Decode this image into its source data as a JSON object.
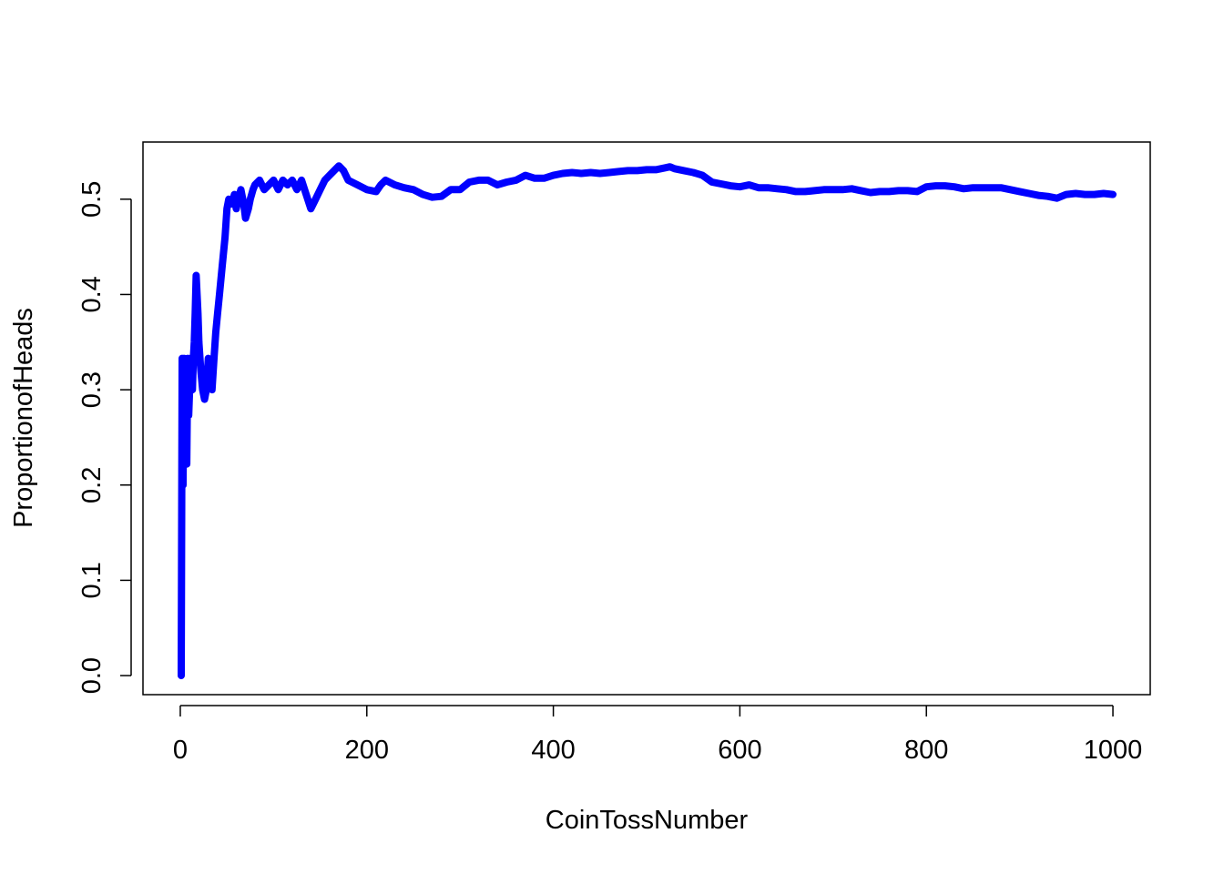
{
  "chart_data": {
    "type": "line",
    "title": "",
    "xlabel": "CoinTossNumber",
    "ylabel": "ProportionofHeads",
    "xlim": [
      -40,
      1040
    ],
    "ylim": [
      -0.02,
      0.56
    ],
    "xticks": [
      0,
      200,
      400,
      600,
      800,
      1000
    ],
    "yticks": [
      0.0,
      0.1,
      0.2,
      0.3,
      0.4,
      0.5
    ],
    "xtick_labels": [
      "0",
      "200",
      "400",
      "600",
      "800",
      "1000"
    ],
    "ytick_labels": [
      "0.0",
      "0.1",
      "0.2",
      "0.3",
      "0.4",
      "0.5"
    ],
    "grid": false,
    "line_color": "#0000ff",
    "series": [
      {
        "x": [
          1,
          2,
          3,
          4,
          5,
          6,
          7,
          8,
          9,
          10,
          11,
          12,
          13,
          14,
          15,
          16,
          17,
          18,
          19,
          20,
          22,
          24,
          26,
          28,
          30,
          32,
          34,
          36,
          38,
          40,
          42,
          45,
          48,
          50,
          52,
          55,
          58,
          60,
          62,
          65,
          68,
          70,
          73,
          75,
          78,
          80,
          85,
          90,
          95,
          100,
          105,
          110,
          115,
          120,
          125,
          130,
          135,
          140,
          145,
          150,
          155,
          160,
          165,
          170,
          175,
          180,
          190,
          200,
          210,
          215,
          220,
          230,
          240,
          250,
          260,
          270,
          280,
          290,
          300,
          310,
          320,
          330,
          340,
          350,
          360,
          370,
          380,
          390,
          400,
          410,
          420,
          430,
          440,
          450,
          460,
          470,
          480,
          490,
          500,
          510,
          520,
          525,
          530,
          540,
          550,
          560,
          570,
          580,
          590,
          600,
          610,
          620,
          630,
          640,
          650,
          660,
          670,
          680,
          690,
          700,
          710,
          720,
          730,
          740,
          750,
          760,
          770,
          780,
          790,
          800,
          810,
          820,
          830,
          840,
          850,
          860,
          870,
          880,
          890,
          900,
          910,
          920,
          930,
          940,
          950,
          960,
          970,
          980,
          990,
          1000
        ],
        "y": [
          0.0,
          0.333,
          0.2,
          0.333,
          0.25,
          0.3,
          0.222,
          0.333,
          0.273,
          0.3,
          0.333,
          0.308,
          0.3,
          0.333,
          0.35,
          0.38,
          0.42,
          0.4,
          0.38,
          0.35,
          0.32,
          0.3,
          0.29,
          0.3,
          0.333,
          0.31,
          0.3,
          0.33,
          0.36,
          0.38,
          0.4,
          0.43,
          0.46,
          0.49,
          0.5,
          0.495,
          0.505,
          0.49,
          0.5,
          0.51,
          0.495,
          0.48,
          0.49,
          0.5,
          0.51,
          0.515,
          0.52,
          0.51,
          0.515,
          0.52,
          0.51,
          0.52,
          0.515,
          0.52,
          0.51,
          0.52,
          0.505,
          0.49,
          0.5,
          0.51,
          0.52,
          0.525,
          0.53,
          0.535,
          0.53,
          0.52,
          0.515,
          0.51,
          0.508,
          0.515,
          0.52,
          0.515,
          0.512,
          0.51,
          0.505,
          0.502,
          0.503,
          0.51,
          0.51,
          0.518,
          0.52,
          0.52,
          0.515,
          0.518,
          0.52,
          0.525,
          0.522,
          0.522,
          0.525,
          0.527,
          0.528,
          0.527,
          0.528,
          0.527,
          0.528,
          0.529,
          0.53,
          0.53,
          0.531,
          0.531,
          0.533,
          0.534,
          0.532,
          0.53,
          0.528,
          0.525,
          0.518,
          0.516,
          0.514,
          0.513,
          0.515,
          0.512,
          0.512,
          0.511,
          0.51,
          0.508,
          0.508,
          0.509,
          0.51,
          0.51,
          0.51,
          0.511,
          0.509,
          0.507,
          0.508,
          0.508,
          0.509,
          0.509,
          0.508,
          0.513,
          0.514,
          0.514,
          0.513,
          0.511,
          0.512,
          0.512,
          0.512,
          0.512,
          0.51,
          0.508,
          0.506,
          0.504,
          0.503,
          0.501,
          0.505,
          0.506,
          0.505,
          0.505,
          0.506,
          0.505
        ]
      }
    ]
  }
}
